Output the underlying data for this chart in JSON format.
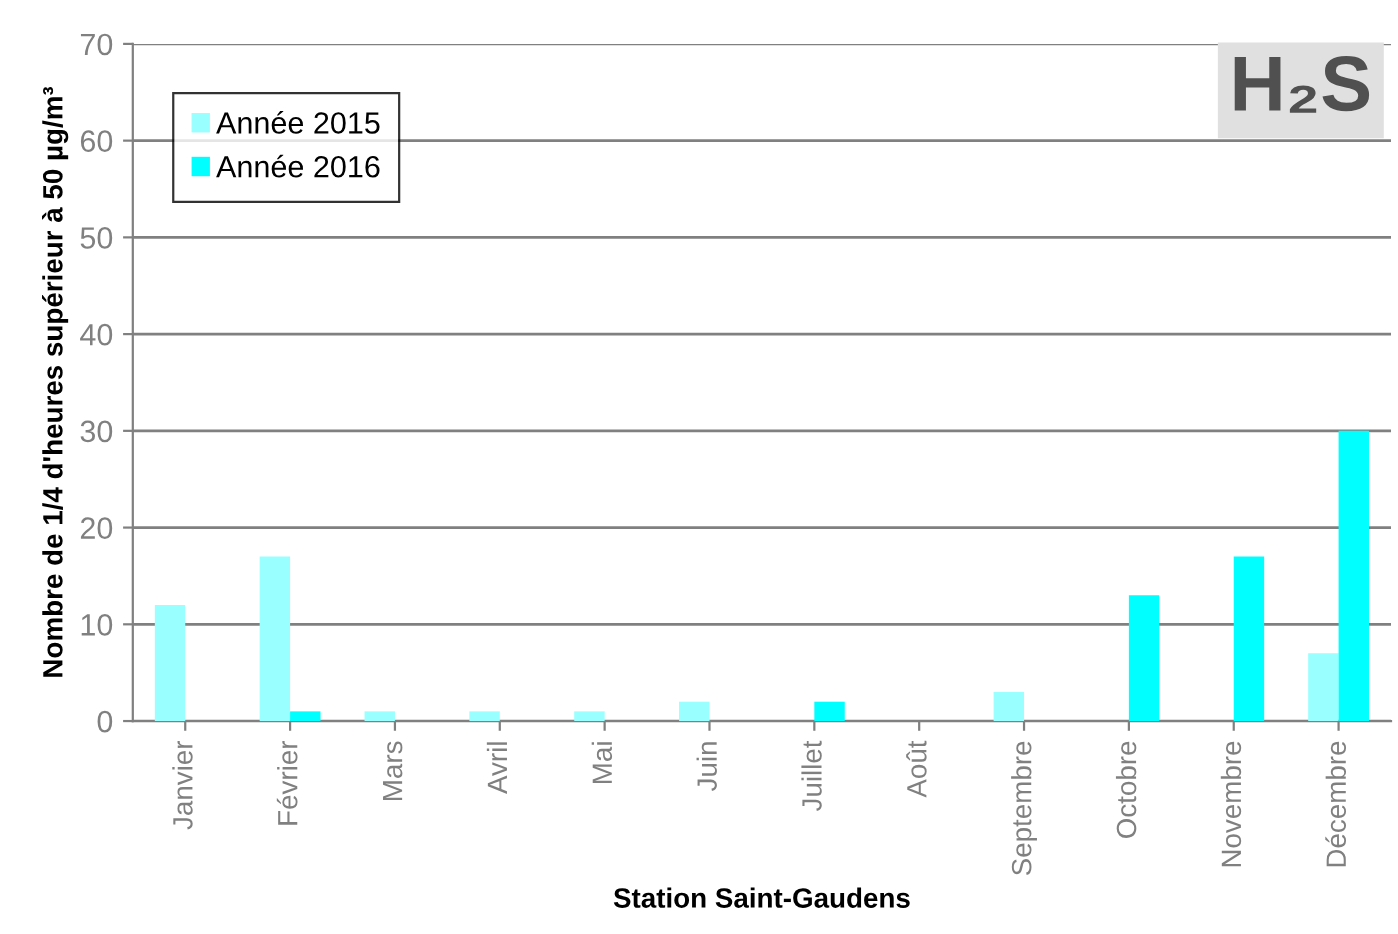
{
  "chart_data": {
    "type": "bar",
    "xlabel": "Station Saint-Gaudens",
    "ylabel": "Nombre de 1/4 d'heures supérieur à 50 µg/m³",
    "categories": [
      "Janvier",
      "Février",
      "Mars",
      "Avril",
      "Mai",
      "Juin",
      "Juillet",
      "Août",
      "Septembre",
      "Octobre",
      "Novembre",
      "Décembre"
    ],
    "series": [
      {
        "name": "Année 2015",
        "color": "#99ffff",
        "values": [
          12,
          17,
          1,
          1,
          1,
          2,
          0,
          0,
          3,
          0,
          0,
          7
        ]
      },
      {
        "name": "Année 2016",
        "color": "#00ffff",
        "values": [
          0,
          1,
          0,
          0,
          0,
          0,
          2,
          0,
          0,
          13,
          17,
          30
        ]
      }
    ],
    "ylim": [
      0,
      70
    ],
    "yticks": [
      0,
      10,
      20,
      30,
      40,
      50,
      60,
      70
    ],
    "grid": "y",
    "legend": "top left",
    "annotations": [
      "H₂S"
    ]
  }
}
